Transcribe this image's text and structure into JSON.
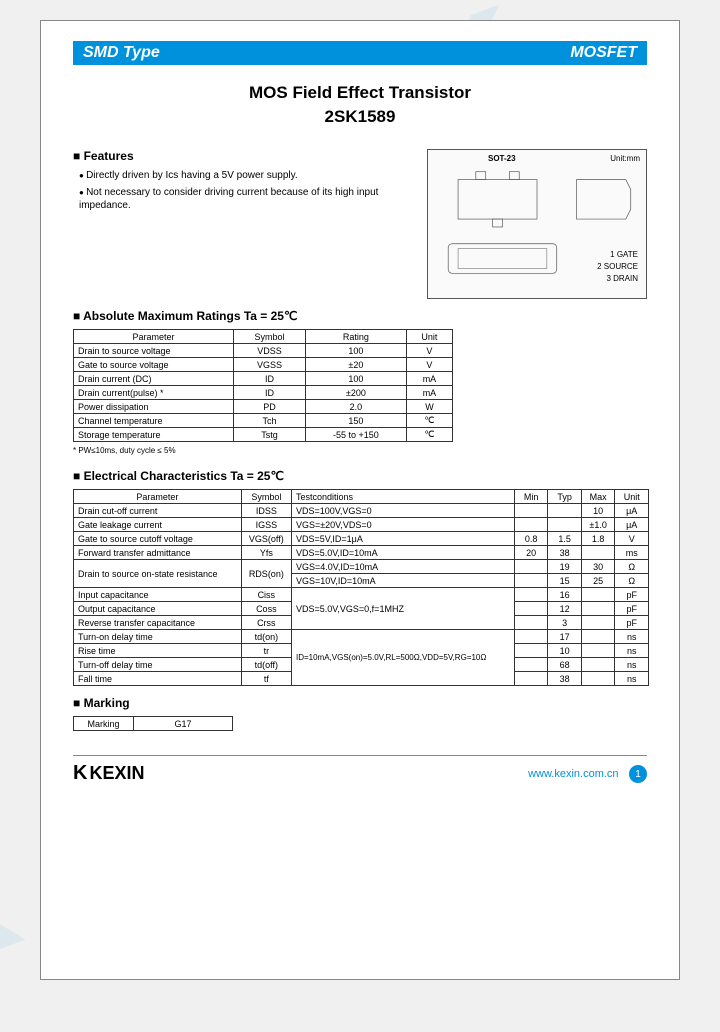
{
  "header": {
    "left": "SMD Type",
    "right": "MOSFET"
  },
  "title": "MOS Field Effect  Transistor",
  "part_number": "2SK1589",
  "features": {
    "heading": "Features",
    "items": [
      "Directly driven by Ics having a 5V power supply.",
      "Not necessary to consider driving current because of its high input impedance."
    ]
  },
  "package": {
    "label": "SOT-23",
    "unit": "Unit:mm",
    "pins": [
      "1 GATE",
      "2 SOURCE",
      "3 DRAIN"
    ]
  },
  "abs_max": {
    "heading": "Absolute Maximum Ratings Ta = 25℃",
    "columns": [
      "Parameter",
      "Symbol",
      "Rating",
      "Unit"
    ],
    "rows": [
      [
        "Drain to source voltage",
        "VDSS",
        "100",
        "V"
      ],
      [
        "Gate to source voltage",
        "VGSS",
        "±20",
        "V"
      ],
      [
        "Drain current (DC)",
        "ID",
        "100",
        "mA"
      ],
      [
        "Drain current(pulse) *",
        "ID",
        "±200",
        "mA"
      ],
      [
        "Power dissipation",
        "PD",
        "2.0",
        "W"
      ],
      [
        "Channel temperature",
        "Tch",
        "150",
        "℃"
      ],
      [
        "Storage temperature",
        "Tstg",
        "-55 to +150",
        "℃"
      ]
    ],
    "footnote": "* PW≤10ms, duty cycle ≤ 5%"
  },
  "elec": {
    "heading": "Electrical Characteristics Ta = 25℃",
    "columns": [
      "Parameter",
      "Symbol",
      "Testconditions",
      "Min",
      "Typ",
      "Max",
      "Unit"
    ],
    "rows": [
      [
        "Drain cut-off current",
        "IDSS",
        "VDS=100V,VGS=0",
        "",
        "",
        "10",
        "μA"
      ],
      [
        "Gate leakage current",
        "IGSS",
        "VGS=±20V,VDS=0",
        "",
        "",
        "±1.0",
        "μA"
      ],
      [
        "Gate to source cutoff voltage",
        "VGS(off)",
        "VDS=5V,ID=1μA",
        "0.8",
        "1.5",
        "1.8",
        "V"
      ],
      [
        "Forward transfer admittance",
        "Yfs",
        "VDS=5.0V,ID=10mA",
        "20",
        "38",
        "",
        "ms"
      ]
    ],
    "rds_label": "Drain to source on-state resistance",
    "rds_symbol": "RDS(on)",
    "rds_rows": [
      [
        "VGS=4.0V,ID=10mA",
        "",
        "19",
        "30",
        "Ω"
      ],
      [
        "VGS=10V,ID=10mA",
        "",
        "15",
        "25",
        "Ω"
      ]
    ],
    "cap_cond": "VDS=5.0V,VGS=0,f=1MHZ",
    "cap_rows": [
      [
        "Input capacitance",
        "Ciss",
        "",
        "16",
        "",
        "pF"
      ],
      [
        "Output capacitance",
        "Coss",
        "",
        "12",
        "",
        "pF"
      ],
      [
        "Reverse transfer capacitance",
        "Crss",
        "",
        "3",
        "",
        "pF"
      ]
    ],
    "time_cond": "ID=10mA,VGS(on)=5.0V,RL=500Ω,VDD=5V,RG=10Ω",
    "time_rows": [
      [
        "Turn-on delay time",
        "td(on)",
        "",
        "17",
        "",
        "ns"
      ],
      [
        "Rise time",
        "tr",
        "",
        "10",
        "",
        "ns"
      ],
      [
        "Turn-off delay time",
        "td(off)",
        "",
        "68",
        "",
        "ns"
      ],
      [
        "Fall time",
        "tf",
        "",
        "38",
        "",
        "ns"
      ]
    ]
  },
  "marking": {
    "heading": "Marking",
    "label": "Marking",
    "value": "G17"
  },
  "footer": {
    "brand": "KEXIN",
    "url": "www.kexin.com.cn",
    "page": "1"
  },
  "colors": {
    "accent": "#0091dc",
    "border": "#333333",
    "bg": "#ffffff"
  }
}
